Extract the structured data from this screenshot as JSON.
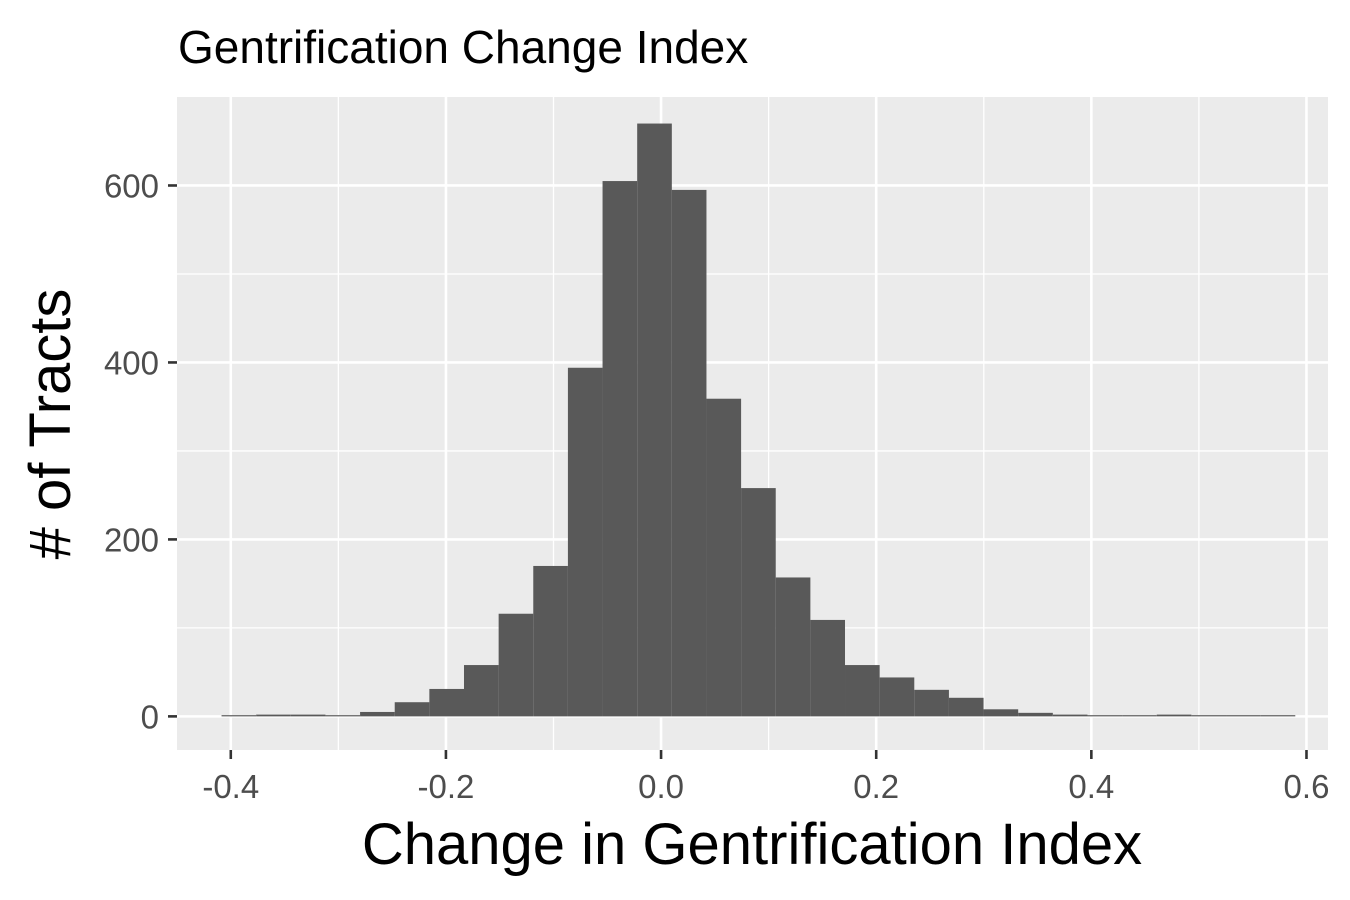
{
  "chart_data": {
    "type": "bar",
    "subtype": "histogram",
    "title": "Gentrification Change Index",
    "xlabel": "Change in Gentrification Index",
    "ylabel": "# of Tracts",
    "xlim": [
      -0.45,
      0.62
    ],
    "ylim": [
      -38,
      700
    ],
    "x_ticks": [
      -0.4,
      -0.2,
      0.0,
      0.2,
      0.4,
      0.6
    ],
    "x_tick_labels": [
      "-0.4",
      "-0.2",
      "0.0",
      "0.2",
      "0.4",
      "0.6"
    ],
    "y_ticks": [
      0,
      200,
      400,
      600
    ],
    "y_tick_labels": [
      "0",
      "200",
      "400",
      "600"
    ],
    "grid": true,
    "legend": "none",
    "colors": {
      "bar": "#595959",
      "panel": "#ebebeb",
      "grid": "#ffffff",
      "tick_text": "#4d4d4d"
    },
    "bins": [
      {
        "x0": -0.4086,
        "x1": -0.3764,
        "count": 1
      },
      {
        "x0": -0.3764,
        "x1": -0.3442,
        "count": 2
      },
      {
        "x0": -0.3442,
        "x1": -0.312,
        "count": 2
      },
      {
        "x0": -0.312,
        "x1": -0.2798,
        "count": 1
      },
      {
        "x0": -0.2798,
        "x1": -0.2476,
        "count": 5
      },
      {
        "x0": -0.2476,
        "x1": -0.2154,
        "count": 16
      },
      {
        "x0": -0.2154,
        "x1": -0.1832,
        "count": 31
      },
      {
        "x0": -0.1832,
        "x1": -0.151,
        "count": 58
      },
      {
        "x0": -0.151,
        "x1": -0.1188,
        "count": 116
      },
      {
        "x0": -0.1188,
        "x1": -0.0866,
        "count": 170
      },
      {
        "x0": -0.0866,
        "x1": -0.0544,
        "count": 394
      },
      {
        "x0": -0.0544,
        "x1": -0.0222,
        "count": 605
      },
      {
        "x0": -0.0222,
        "x1": 0.01,
        "count": 670
      },
      {
        "x0": 0.01,
        "x1": 0.0422,
        "count": 595
      },
      {
        "x0": 0.0422,
        "x1": 0.0744,
        "count": 359
      },
      {
        "x0": 0.0744,
        "x1": 0.1066,
        "count": 258
      },
      {
        "x0": 0.1066,
        "x1": 0.1388,
        "count": 157
      },
      {
        "x0": 0.1388,
        "x1": 0.171,
        "count": 109
      },
      {
        "x0": 0.171,
        "x1": 0.2032,
        "count": 58
      },
      {
        "x0": 0.2032,
        "x1": 0.2354,
        "count": 44
      },
      {
        "x0": 0.2354,
        "x1": 0.2676,
        "count": 30
      },
      {
        "x0": 0.2676,
        "x1": 0.2998,
        "count": 21
      },
      {
        "x0": 0.2998,
        "x1": 0.332,
        "count": 8
      },
      {
        "x0": 0.332,
        "x1": 0.3642,
        "count": 4
      },
      {
        "x0": 0.3642,
        "x1": 0.3964,
        "count": 2
      },
      {
        "x0": 0.3964,
        "x1": 0.4286,
        "count": 1
      },
      {
        "x0": 0.4286,
        "x1": 0.4608,
        "count": 1
      },
      {
        "x0": 0.4608,
        "x1": 0.493,
        "count": 2
      },
      {
        "x0": 0.493,
        "x1": 0.5252,
        "count": 1
      },
      {
        "x0": 0.5252,
        "x1": 0.5574,
        "count": 0
      },
      {
        "x0": 0.5574,
        "x1": 0.5896,
        "count": 1
      }
    ]
  }
}
